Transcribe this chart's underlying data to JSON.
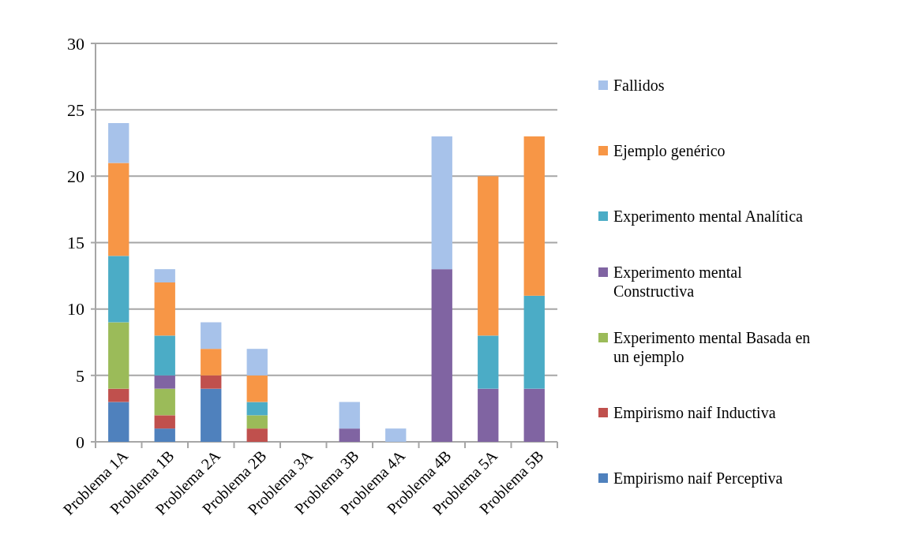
{
  "chart_data": {
    "type": "bar",
    "stacked": true,
    "categories": [
      "Problema 1A",
      "Problema 1B",
      "Problema 2A",
      "Problema 2B",
      "Problema 3A",
      "Problema 3B",
      "Problema 4A",
      "Problema 4B",
      "Problema 5A",
      "Problema 5B"
    ],
    "series": [
      {
        "name": "Empirismo naif Perceptiva",
        "color": "#4f81bd",
        "values": [
          3,
          1,
          4,
          0,
          0,
          0,
          0,
          0,
          0,
          0
        ]
      },
      {
        "name": "Empirismo naif Inductiva",
        "color": "#c0504d",
        "values": [
          1,
          1,
          1,
          1,
          0,
          0,
          0,
          0,
          0,
          0
        ]
      },
      {
        "name": "Experimento mental Basada en un ejemplo",
        "color": "#9bbb59",
        "values": [
          5,
          2,
          0,
          1,
          0,
          0,
          0,
          0,
          0,
          0
        ]
      },
      {
        "name": "Experimento mental Constructiva",
        "color": "#8064a2",
        "values": [
          0,
          1,
          0,
          0,
          0,
          1,
          0,
          13,
          4,
          4
        ]
      },
      {
        "name": "Experimento mental Analítica",
        "color": "#4bacc6",
        "values": [
          5,
          3,
          0,
          1,
          0,
          0,
          0,
          0,
          4,
          7
        ]
      },
      {
        "name": "Ejemplo genérico",
        "color": "#f79646",
        "values": [
          7,
          4,
          2,
          2,
          0,
          0,
          0,
          0,
          12,
          12
        ]
      },
      {
        "name": "Fallidos",
        "color": "#a7c2ea",
        "values": [
          3,
          1,
          2,
          2,
          0,
          2,
          1,
          10,
          0,
          0
        ]
      }
    ],
    "ylim": [
      0,
      30
    ],
    "yticks": [
      0,
      5,
      10,
      15,
      20,
      25,
      30
    ],
    "grid": "y",
    "legend": "right"
  }
}
